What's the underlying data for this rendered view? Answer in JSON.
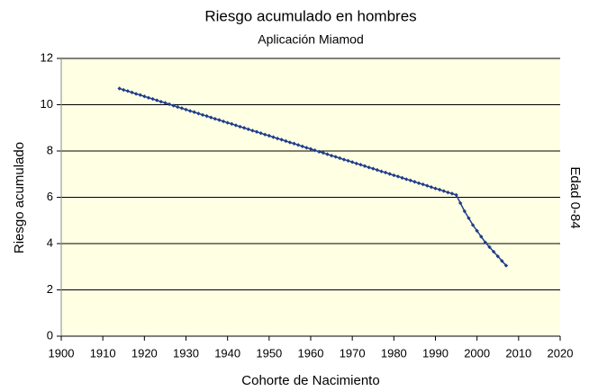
{
  "chart_data": {
    "type": "line",
    "title": "Riesgo acumulado en hombres",
    "subtitle": "Aplicación Miamod",
    "xlabel": "Cohorte de Nacimiento",
    "ylabel": "Riesgo acumulado",
    "annotation": "Edad 0-84",
    "xlim": [
      1900,
      2020
    ],
    "xticks": [
      1900,
      1910,
      1920,
      1930,
      1940,
      1950,
      1960,
      1970,
      1980,
      1990,
      2000,
      2010,
      2020
    ],
    "ylim": [
      0,
      12
    ],
    "yticks": [
      0,
      2,
      4,
      6,
      8,
      10,
      12
    ],
    "grid": true,
    "series": [
      {
        "color": "#1f3d8c",
        "x": [
          1914,
          1915,
          1916,
          1917,
          1918,
          1919,
          1920,
          1921,
          1922,
          1923,
          1924,
          1925,
          1926,
          1927,
          1928,
          1929,
          1930,
          1931,
          1932,
          1933,
          1934,
          1935,
          1936,
          1937,
          1938,
          1939,
          1940,
          1941,
          1942,
          1943,
          1944,
          1945,
          1946,
          1947,
          1948,
          1949,
          1950,
          1951,
          1952,
          1953,
          1954,
          1955,
          1956,
          1957,
          1958,
          1959,
          1960,
          1961,
          1962,
          1963,
          1964,
          1965,
          1966,
          1967,
          1968,
          1969,
          1970,
          1971,
          1972,
          1973,
          1974,
          1975,
          1976,
          1977,
          1978,
          1979,
          1980,
          1981,
          1982,
          1983,
          1984,
          1985,
          1986,
          1987,
          1988,
          1989,
          1990,
          1991,
          1992,
          1993,
          1994,
          1995,
          1996,
          1997,
          1998,
          1999,
          2000,
          2001,
          2002,
          2003,
          2004,
          2005,
          2006,
          2007
        ],
        "values": [
          10.7,
          10.64,
          10.59,
          10.53,
          10.47,
          10.42,
          10.36,
          10.3,
          10.25,
          10.19,
          10.13,
          10.08,
          10.02,
          9.96,
          9.9,
          9.85,
          9.79,
          9.73,
          9.68,
          9.62,
          9.56,
          9.51,
          9.45,
          9.39,
          9.34,
          9.28,
          9.22,
          9.17,
          9.11,
          9.05,
          9.0,
          8.94,
          8.88,
          8.83,
          8.77,
          8.71,
          8.66,
          8.6,
          8.54,
          8.49,
          8.43,
          8.37,
          8.32,
          8.26,
          8.2,
          8.14,
          8.09,
          8.03,
          7.97,
          7.92,
          7.86,
          7.8,
          7.75,
          7.69,
          7.63,
          7.58,
          7.52,
          7.46,
          7.41,
          7.35,
          7.29,
          7.24,
          7.18,
          7.12,
          7.07,
          7.01,
          6.95,
          6.9,
          6.84,
          6.78,
          6.73,
          6.67,
          6.61,
          6.56,
          6.5,
          6.44,
          6.38,
          6.33,
          6.27,
          6.21,
          6.16,
          6.1,
          5.75,
          5.4,
          5.1,
          4.8,
          4.55,
          4.3,
          4.05,
          3.85,
          3.65,
          3.45,
          3.25,
          3.05
        ]
      }
    ]
  }
}
